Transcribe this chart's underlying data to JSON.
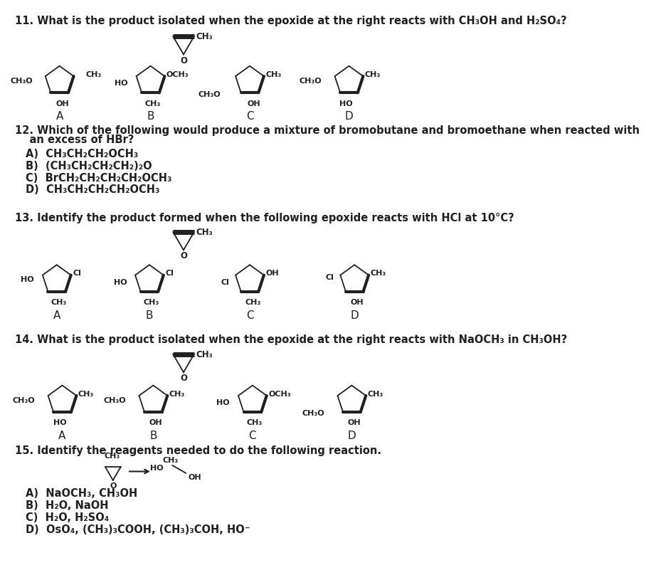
{
  "background": "#ffffff",
  "text_color": "#231f20",
  "title_fontsize": 10.5,
  "body_fontsize": 10.5,
  "q11_text": "11. What is the product isolated when the epoxide at the right reacts with CH₃OH and H₂SO₄?",
  "q12_line1": "12. Which of the following would produce a mixture of bromobutane and bromoethane when reacted with",
  "q12_line2": "    an excess of HBr?",
  "q12_options": [
    "A)  CH₃CH₂CH₂OCH₃",
    "B)  (CH₃CH₂CH₂CH₂)₂O",
    "C)  BrCH₂CH₂CH₂CH₂OCH₃",
    "D)  CH₃CH₂CH₂CH₂OCH₃"
  ],
  "q13_text": "13. Identify the product formed when the following epoxide reacts with HCl at 10°C?",
  "q14_text": "14. What is the product isolated when the epoxide at the right reacts with NaOCH₃ in CH₃OH?",
  "q15_text": "15. Identify the reagents needed to do the following reaction.",
  "q15_options": [
    "A)  NaOCH₃, CH₃OH",
    "B)  H₂O, NaOH",
    "C)  H₂O, H₂SO₄",
    "D)  OsO₄, (CH₃)₃COOH, (CH₃)₃COH, HO⁻"
  ],
  "r_pent": 27,
  "r_epox": 22,
  "r_epox_small": 16
}
